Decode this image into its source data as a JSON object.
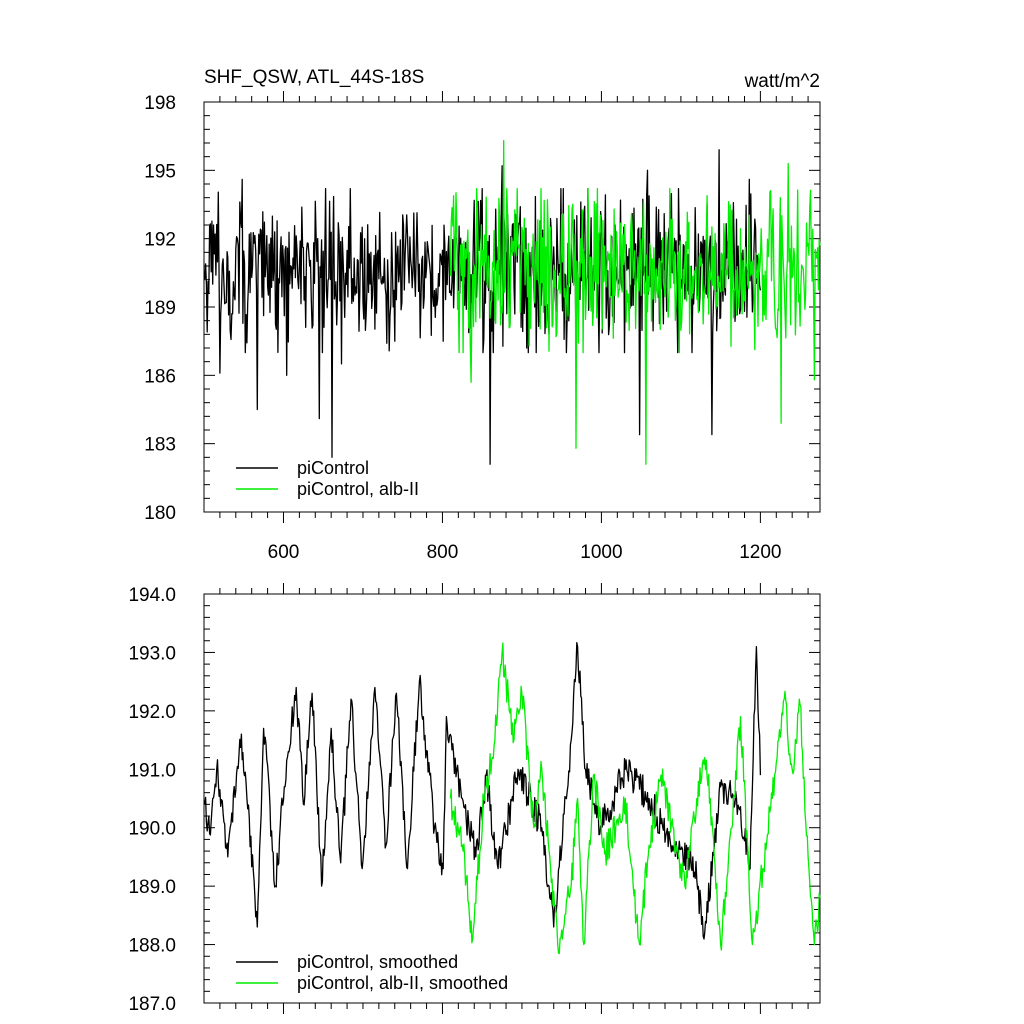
{
  "header": {
    "title": "SHF_QSW, ATL_44S-18S",
    "units": "watt/m^2"
  },
  "colors": {
    "piControl": "#000000",
    "alb": "#00ee00"
  },
  "chart_data": [
    {
      "type": "line",
      "panel": "top",
      "xlim": [
        500,
        1275
      ],
      "ylim": [
        180,
        198
      ],
      "x_ticks": [
        600,
        800,
        1000,
        1200
      ],
      "y_ticks": [
        180,
        183,
        186,
        189,
        192,
        195,
        198
      ],
      "y_tick_labels": [
        "180",
        "183",
        "186",
        "189",
        "192",
        "195",
        "198"
      ],
      "x_tick_labels": [
        "600",
        "800",
        "1000",
        "1200"
      ],
      "legend": {
        "placement": "bottom-left"
      },
      "series": [
        {
          "name": "piControl",
          "color": "#000000",
          "x_range": [
            501,
            1200
          ],
          "mean": 190.6,
          "std": 1.9,
          "keypoints": [
            [
              520,
              186.1
            ],
            [
              548,
              194.6
            ],
            [
              567,
              184.5
            ],
            [
              604,
              186.0
            ],
            [
              645,
              184.1
            ],
            [
              661,
              182.4
            ],
            [
              673,
              186.5
            ],
            [
              801,
              187.5
            ],
            [
              860,
              182.1
            ],
            [
              875,
              195.2
            ],
            [
              1048,
              183.4
            ],
            [
              1058,
              195.0
            ],
            [
              1139,
              183.4
            ],
            [
              1148,
              195.9
            ],
            [
              1186,
              194.6
            ]
          ]
        },
        {
          "name": "piControl, alb-II",
          "color": "#00ee00",
          "x_range": [
            810,
            1275
          ],
          "mean": 190.6,
          "std": 1.9,
          "keypoints": [
            [
              836,
              185.7
            ],
            [
              877,
              196.3
            ],
            [
              968,
              182.8
            ],
            [
              1056,
              182.1
            ],
            [
              1226,
              183.9
            ],
            [
              1235,
              195.3
            ],
            [
              1268,
              185.8
            ]
          ]
        }
      ]
    },
    {
      "type": "line",
      "panel": "bottom",
      "xlim": [
        500,
        1275
      ],
      "ylim": [
        187.0,
        194.0
      ],
      "x_ticks": [
        600,
        800,
        1000,
        1200
      ],
      "y_ticks": [
        187.0,
        188.0,
        189.0,
        190.0,
        191.0,
        192.0,
        193.0,
        194.0
      ],
      "y_tick_labels": [
        "187.0",
        "188.0",
        "189.0",
        "190.0",
        "191.0",
        "192.0",
        "193.0",
        "194.0"
      ],
      "legend": {
        "placement": "bottom-left"
      },
      "series": [
        {
          "name": "piControl, smoothed",
          "color": "#000000",
          "x_range": [
            501,
            1200
          ],
          "keypoints": [
            [
              501,
              190.4
            ],
            [
              507,
              189.9
            ],
            [
              516,
              191.0
            ],
            [
              530,
              189.5
            ],
            [
              547,
              191.6
            ],
            [
              567,
              188.3
            ],
            [
              575,
              191.7
            ],
            [
              590,
              189.0
            ],
            [
              601,
              190.7
            ],
            [
              616,
              192.4
            ],
            [
              625,
              190.4
            ],
            [
              636,
              192.3
            ],
            [
              648,
              189.0
            ],
            [
              660,
              191.7
            ],
            [
              672,
              189.4
            ],
            [
              685,
              192.2
            ],
            [
              699,
              189.3
            ],
            [
              715,
              192.4
            ],
            [
              729,
              189.7
            ],
            [
              742,
              192.3
            ],
            [
              756,
              189.3
            ],
            [
              771,
              192.5
            ],
            [
              790,
              190.0
            ],
            [
              801,
              189.3
            ],
            [
              805,
              191.9
            ],
            [
              825,
              190.5
            ],
            [
              842,
              189.5
            ],
            [
              855,
              190.9
            ],
            [
              870,
              189.3
            ],
            [
              895,
              191.0
            ],
            [
              925,
              190.0
            ],
            [
              940,
              188.3
            ],
            [
              962,
              191.5
            ],
            [
              970,
              193.1
            ],
            [
              980,
              191.0
            ],
            [
              1000,
              190.0
            ],
            [
              1030,
              191.0
            ],
            [
              1060,
              190.5
            ],
            [
              1090,
              189.6
            ],
            [
              1115,
              189.5
            ],
            [
              1130,
              188.2
            ],
            [
              1150,
              190.7
            ],
            [
              1170,
              190.5
            ],
            [
              1187,
              189.3
            ],
            [
              1195,
              193.1
            ],
            [
              1200,
              190.9
            ]
          ]
        },
        {
          "name": "piControl, alb-II, smoothed",
          "color": "#00ee00",
          "x_range": [
            810,
            1275
          ],
          "keypoints": [
            [
              810,
              190.5
            ],
            [
              826,
              189.6
            ],
            [
              838,
              188.1
            ],
            [
              852,
              190.5
            ],
            [
              866,
              191.5
            ],
            [
              875,
              193.0
            ],
            [
              890,
              191.5
            ],
            [
              900,
              192.3
            ],
            [
              915,
              190.0
            ],
            [
              925,
              191.0
            ],
            [
              935,
              189.5
            ],
            [
              945,
              188.0
            ],
            [
              962,
              189.0
            ],
            [
              970,
              190.5
            ],
            [
              978,
              188.0
            ],
            [
              990,
              190.9
            ],
            [
              1005,
              189.6
            ],
            [
              1018,
              190.0
            ],
            [
              1030,
              190.5
            ],
            [
              1040,
              189.0
            ],
            [
              1048,
              188.0
            ],
            [
              1060,
              189.7
            ],
            [
              1075,
              190.9
            ],
            [
              1090,
              190.0
            ],
            [
              1105,
              189.0
            ],
            [
              1120,
              190.5
            ],
            [
              1130,
              191.2
            ],
            [
              1137,
              190.5
            ],
            [
              1150,
              188.0
            ],
            [
              1160,
              189.5
            ],
            [
              1175,
              191.9
            ],
            [
              1190,
              188.0
            ],
            [
              1203,
              189.3
            ],
            [
              1215,
              190.5
            ],
            [
              1230,
              192.2
            ],
            [
              1240,
              191.0
            ],
            [
              1250,
              192.1
            ],
            [
              1260,
              189.5
            ],
            [
              1268,
              188.0
            ],
            [
              1275,
              188.8
            ]
          ]
        }
      ]
    }
  ]
}
